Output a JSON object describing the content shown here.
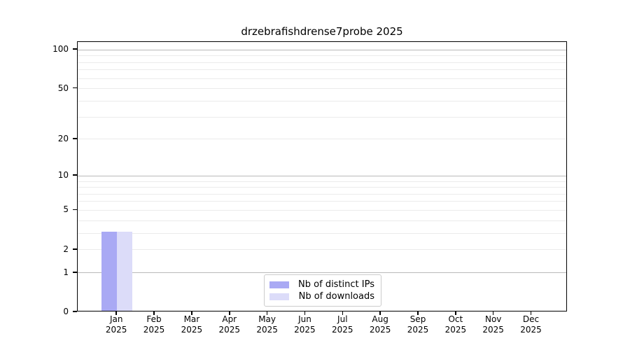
{
  "figure": {
    "background": "#ffffff"
  },
  "chart_data": {
    "type": "bar",
    "title": "drzebrafishdrense7probe 2025",
    "xlabel": "",
    "ylabel": "",
    "year": "2025",
    "categories": [
      "Jan",
      "Feb",
      "Mar",
      "Apr",
      "May",
      "Jun",
      "Jul",
      "Aug",
      "Sep",
      "Oct",
      "Nov",
      "Dec"
    ],
    "series": [
      {
        "name": "Nb of distinct IPs",
        "color": "#a9a9f4",
        "values": [
          3,
          0,
          0,
          0,
          0,
          0,
          0,
          0,
          0,
          0,
          0,
          0
        ]
      },
      {
        "name": "Nb of downloads",
        "color": "#dcdcf9",
        "values": [
          3,
          0,
          0,
          0,
          0,
          0,
          0,
          0,
          0,
          0,
          0,
          0
        ]
      }
    ],
    "yscale": "log1p",
    "ylim": [
      0,
      115
    ],
    "y_tick_labels": [
      100,
      50,
      20,
      10,
      5,
      2,
      1,
      0
    ],
    "y_decade_gridlines": [
      1,
      10,
      100
    ],
    "y_light_gridlines": [
      2,
      3,
      4,
      5,
      6,
      7,
      8,
      9,
      20,
      30,
      40,
      50,
      60,
      70,
      80,
      90
    ],
    "grid": true,
    "legend_position": "bottom-center"
  },
  "colors": {
    "spine": "#000000",
    "grid_major": "#b9b9b9",
    "grid_minor": "#ebebeb",
    "legend_border": "#cccccc",
    "text": "#000000"
  }
}
